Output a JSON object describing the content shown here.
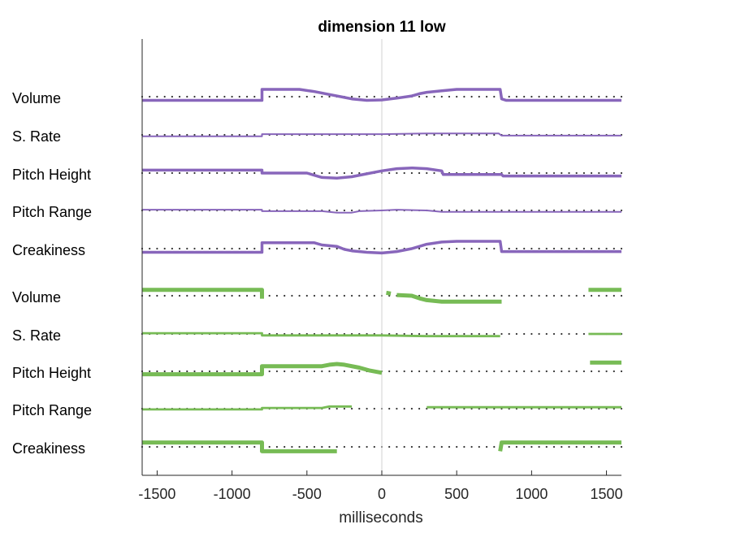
{
  "chart_data": {
    "type": "line",
    "title": "dimension 11 low",
    "xlabel": "milliseconds",
    "ylabel": "",
    "xlim": [
      -1600,
      1600
    ],
    "x_ticks": [
      -1500,
      -1000,
      -500,
      0,
      500,
      1000,
      1500
    ],
    "grid": false,
    "zero_line": true,
    "baseline_dots": true,
    "rows": [
      {
        "label": "Volume",
        "group": "purple",
        "color": "#8866bb",
        "width": 3.5,
        "points": [
          [
            -1600,
            -0.5
          ],
          [
            -800,
            -0.5
          ],
          [
            -800,
            1.0
          ],
          [
            -550,
            1.0
          ],
          [
            -450,
            0.7
          ],
          [
            -350,
            0.3
          ],
          [
            -250,
            -0.1
          ],
          [
            -200,
            -0.3
          ],
          [
            -100,
            -0.5
          ],
          [
            0,
            -0.45
          ],
          [
            100,
            -0.2
          ],
          [
            200,
            0.1
          ],
          [
            250,
            0.4
          ],
          [
            300,
            0.6
          ],
          [
            400,
            0.8
          ],
          [
            500,
            1.0
          ],
          [
            600,
            1.0
          ],
          [
            790,
            1.0
          ],
          [
            800,
            -0.3
          ],
          [
            830,
            -0.5
          ],
          [
            1600,
            -0.5
          ]
        ]
      },
      {
        "label": "S. Rate",
        "group": "purple",
        "color": "#8866bb",
        "width": 2,
        "points": [
          [
            -1600,
            -0.2
          ],
          [
            -800,
            -0.2
          ],
          [
            -800,
            0.1
          ],
          [
            -300,
            0.1
          ],
          [
            0,
            0.1
          ],
          [
            300,
            0.2
          ],
          [
            780,
            0.2
          ],
          [
            800,
            -0.1
          ],
          [
            1600,
            -0.1
          ]
        ]
      },
      {
        "label": "Pitch Height",
        "group": "purple",
        "color": "#8866bb",
        "width": 3.5,
        "points": [
          [
            -1600,
            0.4
          ],
          [
            -800,
            0.4
          ],
          [
            -800,
            0
          ],
          [
            -500,
            0
          ],
          [
            -400,
            -0.6
          ],
          [
            -300,
            -0.7
          ],
          [
            -200,
            -0.5
          ],
          [
            -100,
            -0.1
          ],
          [
            0,
            0.3
          ],
          [
            100,
            0.6
          ],
          [
            200,
            0.7
          ],
          [
            300,
            0.6
          ],
          [
            400,
            0.3
          ],
          [
            410,
            -0.2
          ],
          [
            500,
            -0.2
          ],
          [
            800,
            -0.2
          ],
          [
            810,
            -0.4
          ],
          [
            1600,
            -0.4
          ]
        ]
      },
      {
        "label": "Pitch Range",
        "group": "purple",
        "color": "#8866bb",
        "width": 2,
        "points": [
          [
            -1600,
            0.1
          ],
          [
            -800,
            0.1
          ],
          [
            -800,
            -0.1
          ],
          [
            -400,
            -0.1
          ],
          [
            -300,
            -0.3
          ],
          [
            -200,
            -0.3
          ],
          [
            -150,
            -0.1
          ],
          [
            0,
            0
          ],
          [
            100,
            0.1
          ],
          [
            300,
            0
          ],
          [
            400,
            -0.2
          ],
          [
            800,
            -0.2
          ],
          [
            1600,
            -0.2
          ]
        ]
      },
      {
        "label": "Creakiness",
        "group": "purple",
        "color": "#8866bb",
        "width": 3.5,
        "points": [
          [
            -1600,
            -0.5
          ],
          [
            -800,
            -0.5
          ],
          [
            -800,
            0.8
          ],
          [
            -450,
            0.8
          ],
          [
            -400,
            0.5
          ],
          [
            -300,
            0.3
          ],
          [
            -250,
            -0.1
          ],
          [
            -200,
            -0.3
          ],
          [
            -100,
            -0.5
          ],
          [
            0,
            -0.6
          ],
          [
            100,
            -0.4
          ],
          [
            200,
            0
          ],
          [
            250,
            0.3
          ],
          [
            300,
            0.6
          ],
          [
            400,
            0.9
          ],
          [
            500,
            1.0
          ],
          [
            790,
            1.0
          ],
          [
            800,
            -0.4
          ],
          [
            1600,
            -0.4
          ]
        ]
      },
      {
        "label": "Volume",
        "group": "green",
        "color": "#77bb55",
        "width": 5,
        "points": [
          [
            -1600,
            0.8
          ],
          [
            -800,
            0.8
          ],
          [
            -800,
            -0.4
          ],
          [
            null,
            null
          ],
          [
            30,
            0.4
          ],
          [
            60,
            0.3
          ],
          [
            null,
            null
          ],
          [
            100,
            0.1
          ],
          [
            200,
            0
          ],
          [
            260,
            -0.4
          ],
          [
            300,
            -0.6
          ],
          [
            400,
            -0.8
          ],
          [
            790,
            -0.8
          ],
          [
            800,
            -0.8
          ],
          [
            null,
            null
          ],
          [
            1380,
            0.8
          ],
          [
            1600,
            0.8
          ]
        ]
      },
      {
        "label": "S. Rate",
        "group": "green",
        "color": "#77bb55",
        "width": 2.8,
        "points": [
          [
            -1600,
            0.1
          ],
          [
            -800,
            0.1
          ],
          [
            -800,
            -0.2
          ],
          [
            0,
            -0.2
          ],
          [
            300,
            -0.3
          ],
          [
            790,
            -0.3
          ],
          [
            null,
            null
          ],
          [
            1380,
            0
          ],
          [
            1600,
            0
          ]
        ]
      },
      {
        "label": "Pitch Height",
        "group": "green",
        "color": "#77bb55",
        "width": 5,
        "points": [
          [
            -1600,
            -0.4
          ],
          [
            -800,
            -0.4
          ],
          [
            -800,
            0.7
          ],
          [
            -400,
            0.7
          ],
          [
            -350,
            0.9
          ],
          [
            -300,
            1.0
          ],
          [
            -250,
            0.9
          ],
          [
            -150,
            0.5
          ],
          [
            -80,
            0.1
          ],
          [
            0,
            -0.2
          ],
          [
            null,
            null
          ],
          [
            1390,
            1.2
          ],
          [
            1600,
            1.2
          ]
        ]
      },
      {
        "label": "Pitch Range",
        "group": "green",
        "color": "#77bb55",
        "width": 2.8,
        "points": [
          [
            -1600,
            -0.1
          ],
          [
            -800,
            -0.1
          ],
          [
            -800,
            0.1
          ],
          [
            -400,
            0.1
          ],
          [
            -350,
            0.3
          ],
          [
            -200,
            0.3
          ],
          [
            null,
            null
          ],
          [
            300,
            0.2
          ],
          [
            500,
            0.2
          ],
          [
            800,
            0.2
          ],
          [
            1600,
            0.2
          ]
        ]
      },
      {
        "label": "Creakiness",
        "group": "green",
        "color": "#77bb55",
        "width": 5,
        "points": [
          [
            -1600,
            0.6
          ],
          [
            -800,
            0.6
          ],
          [
            -800,
            -0.6
          ],
          [
            -300,
            -0.6
          ],
          [
            null,
            null
          ],
          [
            790,
            -0.6
          ],
          [
            800,
            0.6
          ],
          [
            1600,
            0.6
          ]
        ]
      }
    ]
  }
}
